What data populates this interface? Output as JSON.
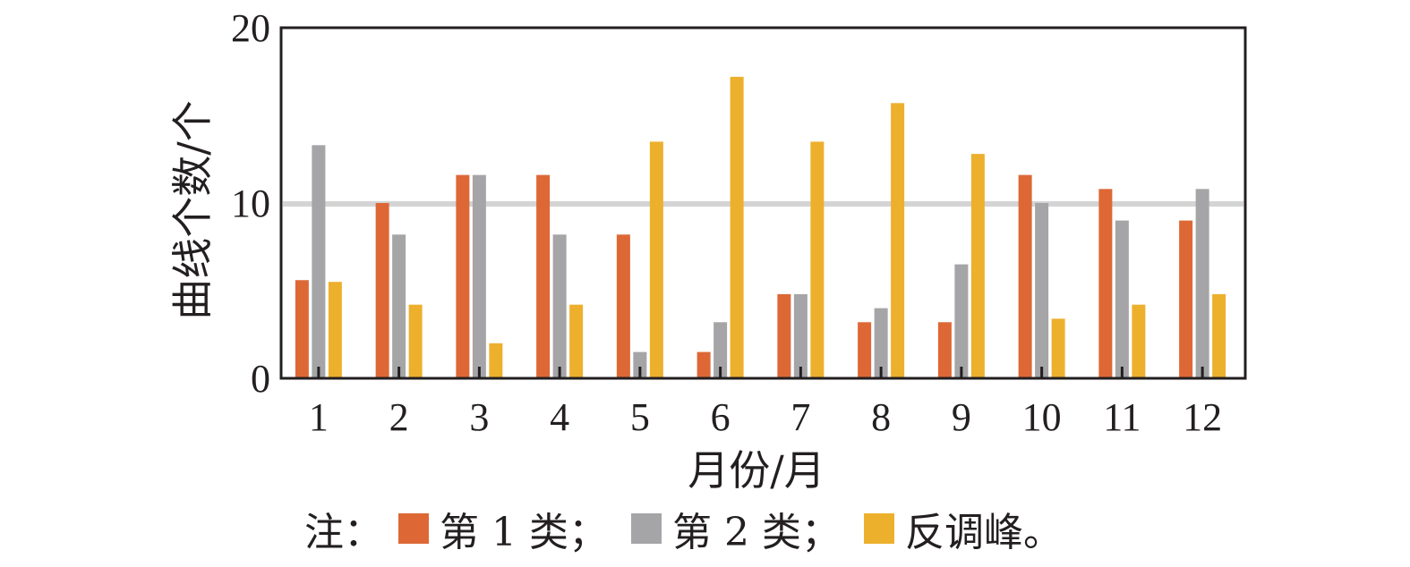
{
  "chart_data": {
    "type": "bar",
    "xlabel": "月份/月",
    "ylabel": "曲线个数/个",
    "ylim": [
      0,
      20
    ],
    "yticks": [
      "0",
      "10",
      "20"
    ],
    "reference_line": 10,
    "grid": false,
    "categories": [
      "1",
      "2",
      "3",
      "4",
      "5",
      "6",
      "7",
      "8",
      "9",
      "10",
      "11",
      "12"
    ],
    "series": [
      {
        "name": "第 1 类",
        "color": "#dd6836",
        "values": [
          5.6,
          10,
          11.6,
          11.6,
          8.2,
          1.5,
          4.8,
          3.2,
          3.2,
          11.6,
          10.8,
          9
        ]
      },
      {
        "name": "第 2 类",
        "color": "#a5a5a8",
        "values": [
          13.3,
          8.2,
          11.6,
          8.2,
          1.5,
          3.2,
          4.8,
          4,
          6.5,
          10,
          9,
          10.8
        ]
      },
      {
        "name": "反调峰",
        "color": "#edb02d",
        "values": [
          5.5,
          4.2,
          2,
          4.2,
          13.5,
          17.2,
          13.5,
          15.7,
          12.8,
          3.4,
          4.2,
          4.8
        ]
      }
    ],
    "legend": {
      "position": "bottom",
      "prefix": "注：",
      "separator": "；",
      "end": "。"
    }
  }
}
